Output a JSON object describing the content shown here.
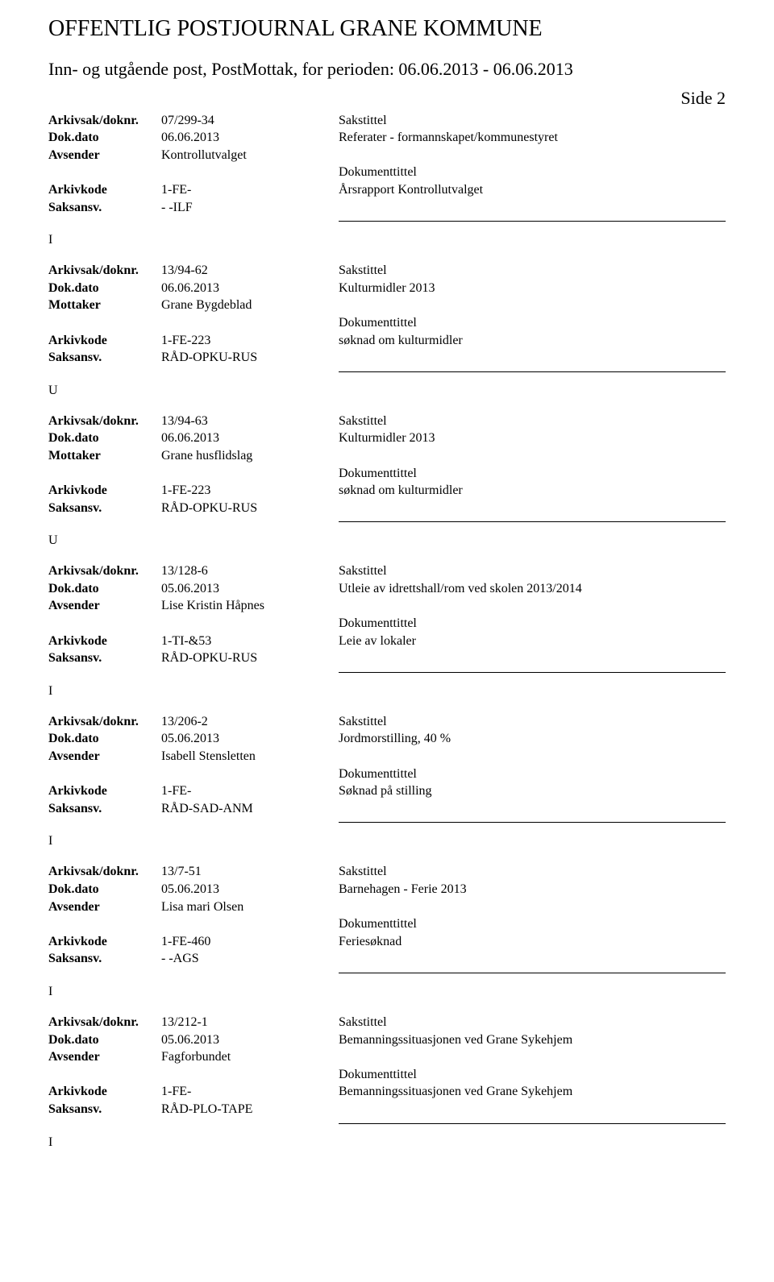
{
  "header": {
    "main_title": "OFFENTLIG POSTJOURNAL GRANE KOMMUNE",
    "sub_title": "Inn- og utgående post, PostMottak, for perioden: 06.06.2013 - 06.06.2013",
    "page_number": "Side 2"
  },
  "labels": {
    "arkivsak": "Arkivsak/doknr.",
    "dokdato": "Dok.dato",
    "avsender": "Avsender",
    "mottaker": "Mottaker",
    "arkivkode": "Arkivkode",
    "saksansv": "Saksansv.",
    "sakstittel": "Sakstittel",
    "dokumenttittel": "Dokumenttittel"
  },
  "entries": [
    {
      "arkivsak": "07/299-34",
      "dokdato": "06.06.2013",
      "party_label": "Avsender",
      "party_value": "Kontrollutvalget",
      "arkivkode": "1-FE-",
      "saksansv": "- -ILF",
      "sakstittel": "Referater - formannskapet/kommunestyret",
      "dokumenttittel": "Årsrapport Kontrollutvalget",
      "direction_after": "I"
    },
    {
      "arkivsak": "13/94-62",
      "dokdato": "06.06.2013",
      "party_label": "Mottaker",
      "party_value": "Grane Bygdeblad",
      "arkivkode": "1-FE-223",
      "saksansv": "RÅD-OPKU-RUS",
      "sakstittel": "Kulturmidler 2013",
      "dokumenttittel": "søknad om kulturmidler",
      "direction_after": "U"
    },
    {
      "arkivsak": "13/94-63",
      "dokdato": "06.06.2013",
      "party_label": "Mottaker",
      "party_value": "Grane husflidslag",
      "arkivkode": "1-FE-223",
      "saksansv": "RÅD-OPKU-RUS",
      "sakstittel": "Kulturmidler 2013",
      "dokumenttittel": "søknad om kulturmidler",
      "direction_after": "U"
    },
    {
      "arkivsak": "13/128-6",
      "dokdato": "05.06.2013",
      "party_label": "Avsender",
      "party_value": "Lise Kristin Håpnes",
      "arkivkode": "1-TI-&53",
      "saksansv": "RÅD-OPKU-RUS",
      "sakstittel": "Utleie av idrettshall/rom ved skolen 2013/2014",
      "dokumenttittel": "Leie av lokaler",
      "direction_after": "I"
    },
    {
      "arkivsak": "13/206-2",
      "dokdato": "05.06.2013",
      "party_label": "Avsender",
      "party_value": "Isabell Stensletten",
      "arkivkode": "1-FE-",
      "saksansv": "RÅD-SAD-ANM",
      "sakstittel": "Jordmorstilling, 40 %",
      "dokumenttittel": "Søknad på stilling",
      "direction_after": "I"
    },
    {
      "arkivsak": "13/7-51",
      "dokdato": "05.06.2013",
      "party_label": "Avsender",
      "party_value": "Lisa mari Olsen",
      "arkivkode": "1-FE-460",
      "saksansv": "- -AGS",
      "sakstittel": "Barnehagen - Ferie 2013",
      "dokumenttittel": "Feriesøknad",
      "direction_after": "I"
    },
    {
      "arkivsak": "13/212-1",
      "dokdato": "05.06.2013",
      "party_label": "Avsender",
      "party_value": "Fagforbundet",
      "arkivkode": "1-FE-",
      "saksansv": "RÅD-PLO-TAPE",
      "sakstittel": "Bemanningssituasjonen ved Grane Sykehjem",
      "dokumenttittel": "Bemanningssituasjonen ved Grane Sykehjem",
      "direction_after": "I"
    }
  ]
}
